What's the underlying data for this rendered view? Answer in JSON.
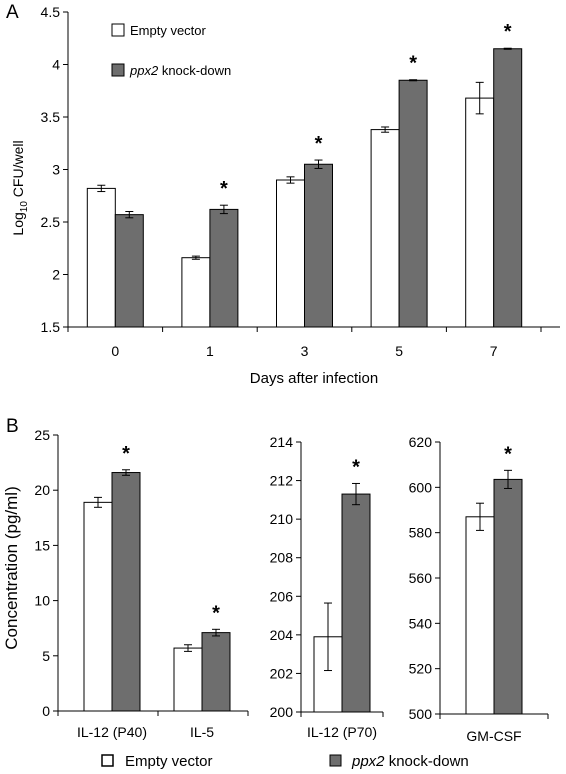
{
  "panel_labels": {
    "a": "A",
    "b": "B"
  },
  "legend": {
    "empty_vector": "Empty vector",
    "knockdown_italic": "ppx2",
    "knockdown_rest": " knock-down"
  },
  "colors": {
    "empty_vector": "#ffffff",
    "knockdown": "#6e6e6e",
    "stroke": "#000000"
  },
  "significance_marker": "*",
  "chart_data": [
    {
      "type": "bar",
      "panel": "A",
      "xlabel": "Days after infection",
      "ylabel_main": "Log",
      "ylabel_sub": "10",
      "ylabel_rest": " CFU/well",
      "categories": [
        "0",
        "1",
        "3",
        "5",
        "7"
      ],
      "ylim": [
        1.5,
        4.5
      ],
      "yticks": [
        "1.5",
        "2",
        "2.5",
        "3",
        "3.5",
        "4",
        "4.5"
      ],
      "series": [
        {
          "name": "Empty vector",
          "values": [
            2.82,
            2.16,
            2.9,
            3.38,
            3.68
          ],
          "errors": [
            0.03,
            0.015,
            0.03,
            0.025,
            0.15
          ]
        },
        {
          "name": "ppx2 knock-down",
          "values": [
            2.57,
            2.62,
            3.05,
            3.85,
            4.15
          ],
          "errors": [
            0.03,
            0.04,
            0.04,
            0.005,
            0.005
          ]
        }
      ],
      "significant": [
        false,
        true,
        true,
        true,
        true
      ],
      "legend_position": "top-left",
      "grid": false
    },
    {
      "type": "bar",
      "panel": "B",
      "ylabel": "Concentration (pg/ml)",
      "categories": [
        "IL-12 (P40)",
        "IL-5"
      ],
      "ylim": [
        0,
        25
      ],
      "yticks": [
        "0",
        "5",
        "10",
        "15",
        "20",
        "25"
      ],
      "series": [
        {
          "name": "Empty vector",
          "values": [
            18.9,
            5.7
          ],
          "errors": [
            0.45,
            0.3
          ]
        },
        {
          "name": "ppx2 knock-down",
          "values": [
            21.6,
            7.1
          ],
          "errors": [
            0.25,
            0.3
          ]
        }
      ],
      "significant": [
        true,
        true
      ],
      "grid": false
    },
    {
      "type": "bar",
      "panel": "B",
      "categories": [
        "IL-12 (P70)"
      ],
      "ylim": [
        200,
        214
      ],
      "yticks": [
        "200",
        "202",
        "204",
        "206",
        "208",
        "210",
        "212",
        "214"
      ],
      "series": [
        {
          "name": "Empty vector",
          "values": [
            203.9
          ],
          "errors": [
            1.75
          ]
        },
        {
          "name": "ppx2 knock-down",
          "values": [
            211.3
          ],
          "errors": [
            0.55
          ]
        }
      ],
      "significant": [
        true
      ],
      "grid": false
    },
    {
      "type": "bar",
      "panel": "B",
      "categories": [
        "GM-CSF"
      ],
      "ylim": [
        500,
        620
      ],
      "yticks": [
        "500",
        "520",
        "540",
        "560",
        "580",
        "600",
        "620"
      ],
      "series": [
        {
          "name": "Empty vector",
          "values": [
            587
          ],
          "errors": [
            6
          ]
        },
        {
          "name": "ppx2 knock-down",
          "values": [
            603.5
          ],
          "errors": [
            4
          ]
        }
      ],
      "significant": [
        true
      ],
      "grid": false
    }
  ]
}
